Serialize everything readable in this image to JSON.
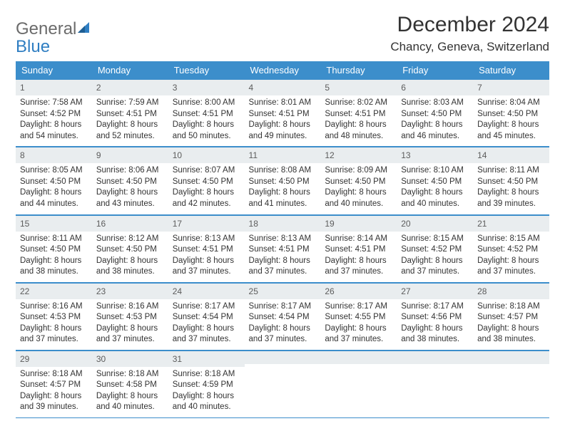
{
  "brand": {
    "general": "General",
    "blue": "Blue"
  },
  "title": "December 2024",
  "location": "Chancy, Geneva, Switzerland",
  "colors": {
    "header_bg": "#3c8ecb",
    "header_text": "#ffffff",
    "daynum_bg": "#e9edef",
    "cell_border": "#3c8ecb",
    "body_text": "#333333",
    "logo_gray": "#6b6b6b",
    "logo_blue": "#2f7ec2"
  },
  "weekdays": [
    "Sunday",
    "Monday",
    "Tuesday",
    "Wednesday",
    "Thursday",
    "Friday",
    "Saturday"
  ],
  "labels": {
    "sunrise": "Sunrise:",
    "sunset": "Sunset:",
    "daylight": "Daylight:"
  },
  "weeks": [
    [
      {
        "n": "1",
        "sr": "7:58 AM",
        "ss": "4:52 PM",
        "dl": "8 hours and 54 minutes."
      },
      {
        "n": "2",
        "sr": "7:59 AM",
        "ss": "4:51 PM",
        "dl": "8 hours and 52 minutes."
      },
      {
        "n": "3",
        "sr": "8:00 AM",
        "ss": "4:51 PM",
        "dl": "8 hours and 50 minutes."
      },
      {
        "n": "4",
        "sr": "8:01 AM",
        "ss": "4:51 PM",
        "dl": "8 hours and 49 minutes."
      },
      {
        "n": "5",
        "sr": "8:02 AM",
        "ss": "4:51 PM",
        "dl": "8 hours and 48 minutes."
      },
      {
        "n": "6",
        "sr": "8:03 AM",
        "ss": "4:50 PM",
        "dl": "8 hours and 46 minutes."
      },
      {
        "n": "7",
        "sr": "8:04 AM",
        "ss": "4:50 PM",
        "dl": "8 hours and 45 minutes."
      }
    ],
    [
      {
        "n": "8",
        "sr": "8:05 AM",
        "ss": "4:50 PM",
        "dl": "8 hours and 44 minutes."
      },
      {
        "n": "9",
        "sr": "8:06 AM",
        "ss": "4:50 PM",
        "dl": "8 hours and 43 minutes."
      },
      {
        "n": "10",
        "sr": "8:07 AM",
        "ss": "4:50 PM",
        "dl": "8 hours and 42 minutes."
      },
      {
        "n": "11",
        "sr": "8:08 AM",
        "ss": "4:50 PM",
        "dl": "8 hours and 41 minutes."
      },
      {
        "n": "12",
        "sr": "8:09 AM",
        "ss": "4:50 PM",
        "dl": "8 hours and 40 minutes."
      },
      {
        "n": "13",
        "sr": "8:10 AM",
        "ss": "4:50 PM",
        "dl": "8 hours and 40 minutes."
      },
      {
        "n": "14",
        "sr": "8:11 AM",
        "ss": "4:50 PM",
        "dl": "8 hours and 39 minutes."
      }
    ],
    [
      {
        "n": "15",
        "sr": "8:11 AM",
        "ss": "4:50 PM",
        "dl": "8 hours and 38 minutes."
      },
      {
        "n": "16",
        "sr": "8:12 AM",
        "ss": "4:50 PM",
        "dl": "8 hours and 38 minutes."
      },
      {
        "n": "17",
        "sr": "8:13 AM",
        "ss": "4:51 PM",
        "dl": "8 hours and 37 minutes."
      },
      {
        "n": "18",
        "sr": "8:13 AM",
        "ss": "4:51 PM",
        "dl": "8 hours and 37 minutes."
      },
      {
        "n": "19",
        "sr": "8:14 AM",
        "ss": "4:51 PM",
        "dl": "8 hours and 37 minutes."
      },
      {
        "n": "20",
        "sr": "8:15 AM",
        "ss": "4:52 PM",
        "dl": "8 hours and 37 minutes."
      },
      {
        "n": "21",
        "sr": "8:15 AM",
        "ss": "4:52 PM",
        "dl": "8 hours and 37 minutes."
      }
    ],
    [
      {
        "n": "22",
        "sr": "8:16 AM",
        "ss": "4:53 PM",
        "dl": "8 hours and 37 minutes."
      },
      {
        "n": "23",
        "sr": "8:16 AM",
        "ss": "4:53 PM",
        "dl": "8 hours and 37 minutes."
      },
      {
        "n": "24",
        "sr": "8:17 AM",
        "ss": "4:54 PM",
        "dl": "8 hours and 37 minutes."
      },
      {
        "n": "25",
        "sr": "8:17 AM",
        "ss": "4:54 PM",
        "dl": "8 hours and 37 minutes."
      },
      {
        "n": "26",
        "sr": "8:17 AM",
        "ss": "4:55 PM",
        "dl": "8 hours and 37 minutes."
      },
      {
        "n": "27",
        "sr": "8:17 AM",
        "ss": "4:56 PM",
        "dl": "8 hours and 38 minutes."
      },
      {
        "n": "28",
        "sr": "8:18 AM",
        "ss": "4:57 PM",
        "dl": "8 hours and 38 minutes."
      }
    ],
    [
      {
        "n": "29",
        "sr": "8:18 AM",
        "ss": "4:57 PM",
        "dl": "8 hours and 39 minutes."
      },
      {
        "n": "30",
        "sr": "8:18 AM",
        "ss": "4:58 PM",
        "dl": "8 hours and 40 minutes."
      },
      {
        "n": "31",
        "sr": "8:18 AM",
        "ss": "4:59 PM",
        "dl": "8 hours and 40 minutes."
      },
      null,
      null,
      null,
      null
    ]
  ]
}
